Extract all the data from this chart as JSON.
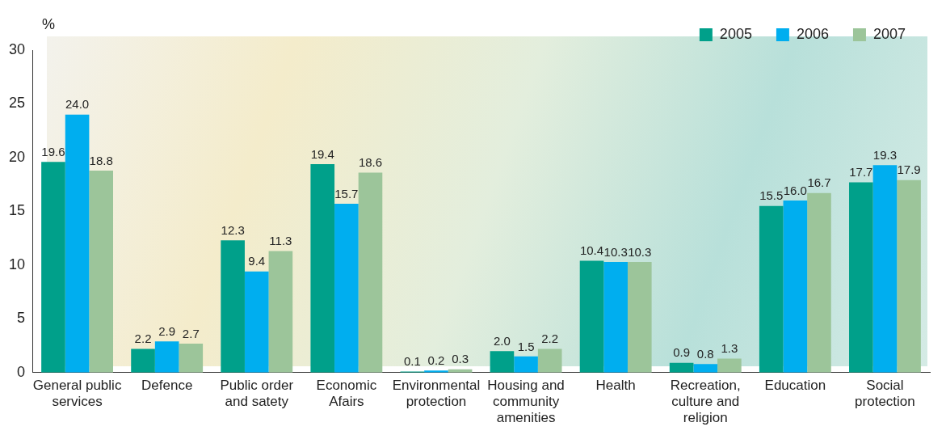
{
  "chart_data": {
    "type": "bar",
    "ylabel": "%",
    "categories": [
      "General public services",
      "Defence",
      "Public order and satety",
      "Economic Afairs",
      "Environmental protection",
      "Housing and community amenities",
      "Health",
      "Recreation, culture and religion",
      "Education",
      "Social protection"
    ],
    "series": [
      {
        "name": "2005",
        "color": "#00a08a",
        "values": [
          19.6,
          2.2,
          12.3,
          19.4,
          0.1,
          2.0,
          10.4,
          0.9,
          15.5,
          17.7
        ]
      },
      {
        "name": "2006",
        "color": "#00aeef",
        "values": [
          24.0,
          2.9,
          9.4,
          15.7,
          0.2,
          1.5,
          10.3,
          0.8,
          16.0,
          19.3
        ]
      },
      {
        "name": "2007",
        "color": "#9cc59a",
        "values": [
          18.8,
          2.7,
          11.3,
          18.6,
          0.3,
          2.2,
          10.3,
          1.3,
          16.7,
          17.9
        ]
      }
    ],
    "value_labels": [
      [
        "19.6",
        "2.2",
        "12.3",
        "19.4",
        "0.1",
        "2.0",
        "10.4",
        "0.9",
        "15.5",
        "17.7"
      ],
      [
        "24.0",
        "2.9",
        "9.4",
        "15.7",
        "0.2",
        "1.5",
        "10.3",
        "0.8",
        "16.0",
        "19.3"
      ],
      [
        "18.8",
        "2.7",
        "11.3",
        "18.6",
        "0.3",
        "2.2",
        "10.3",
        "1.3",
        "16.7",
        "17.9"
      ]
    ],
    "ylim": [
      0,
      30
    ],
    "yticks": [
      0,
      5,
      10,
      15,
      20,
      25,
      30
    ],
    "grid": false,
    "legend": "top right"
  }
}
